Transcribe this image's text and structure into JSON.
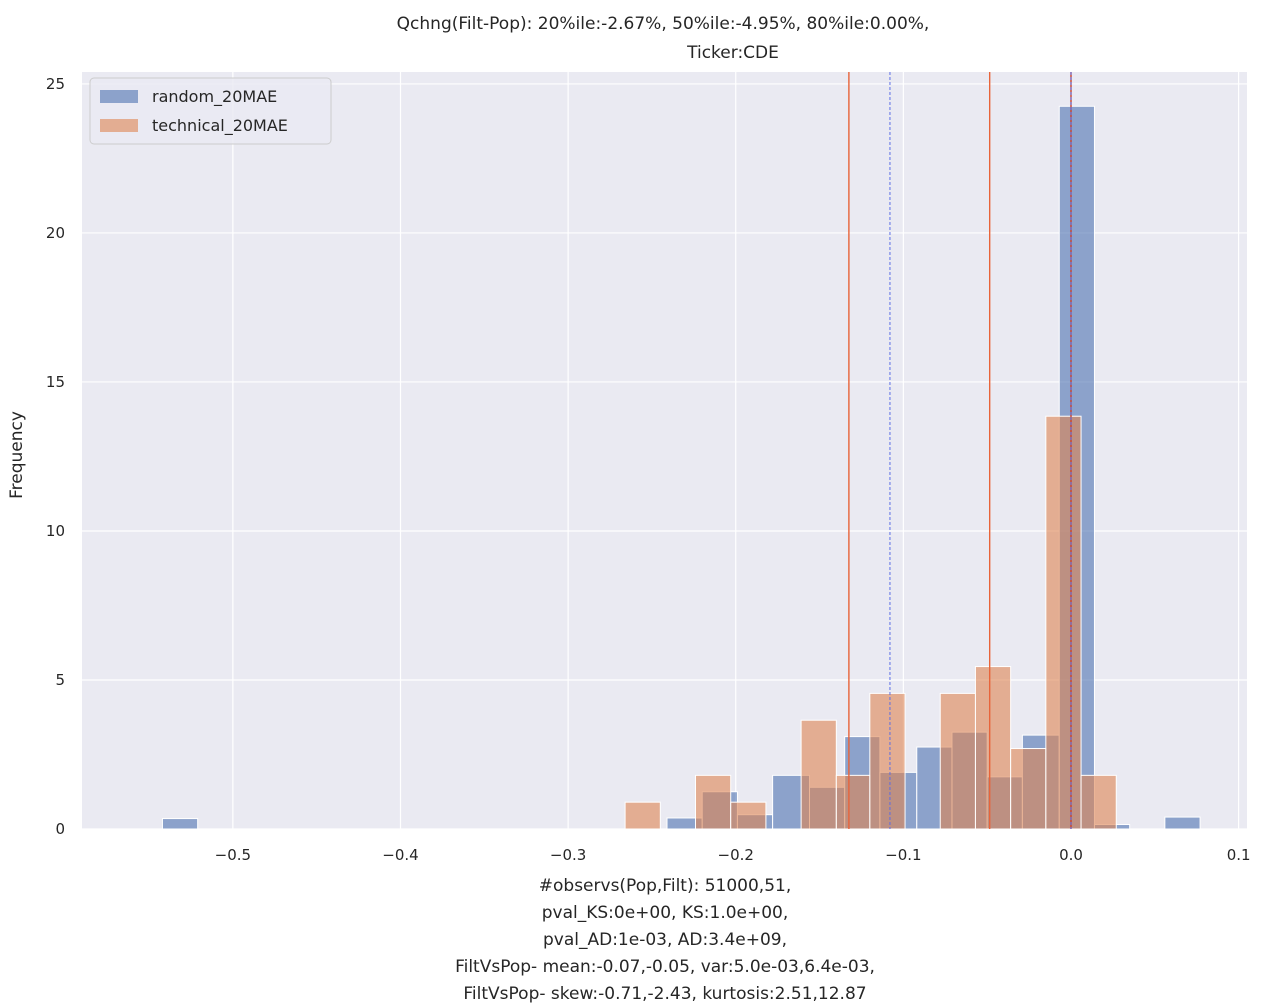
{
  "chart_data": {
    "type": "bar",
    "title_lines": [
      "Qchng(Filt-Pop):  20%ile:-2.67%, 50%ile:-4.95%, 80%ile:0.00%,",
      "Ticker:CDE"
    ],
    "ylabel": "Frequency",
    "xlabel_lines": [
      "#observs(Pop,Filt): 51000,51,",
      "pval_KS:0e+00, KS:1.0e+00,",
      "pval_AD:1e-03, AD:3.4e+09,",
      "FiltVsPop- mean:-0.07,-0.05, var:5.0e-03,6.4e-03,",
      "FiltVsPop- skew:-0.71,-2.43, kurtosis:2.51,12.87"
    ],
    "xlim": [
      -0.59,
      0.105
    ],
    "ylim": [
      0,
      25.4
    ],
    "xticks": [
      -0.5,
      -0.4,
      -0.3,
      -0.2,
      -0.1,
      0.0,
      0.1
    ],
    "xtick_labels": [
      "−0.5",
      "−0.4",
      "−0.3",
      "−0.2",
      "−0.1",
      "0.0",
      "0.1"
    ],
    "yticks": [
      0,
      5,
      10,
      15,
      20,
      25
    ],
    "ytick_labels": [
      "0",
      "5",
      "10",
      "15",
      "20",
      "25"
    ],
    "grid": true,
    "legend_position": "top-left",
    "series": [
      {
        "name": "random_20MAE",
        "color": "#4c72b0",
        "opacity": 0.6,
        "bins": [
          [
            -0.542,
            -0.521,
            0.35
          ],
          [
            -0.241,
            -0.22,
            0.37
          ],
          [
            -0.22,
            -0.199,
            1.25
          ],
          [
            -0.199,
            -0.178,
            0.48
          ],
          [
            -0.178,
            -0.156,
            1.8
          ],
          [
            -0.156,
            -0.135,
            1.4
          ],
          [
            -0.135,
            -0.114,
            3.1
          ],
          [
            -0.114,
            -0.092,
            1.9
          ],
          [
            -0.092,
            -0.071,
            2.75
          ],
          [
            -0.071,
            -0.05,
            3.25
          ],
          [
            -0.05,
            -0.029,
            1.75
          ],
          [
            -0.029,
            -0.007,
            3.15
          ],
          [
            -0.007,
            0.014,
            24.25
          ],
          [
            0.014,
            0.035,
            0.15
          ],
          [
            0.056,
            0.077,
            0.4
          ]
        ]
      },
      {
        "name": "technical_20MAE",
        "color": "#dd8452",
        "opacity": 0.6,
        "bins": [
          [
            -0.266,
            -0.245,
            0.9
          ],
          [
            -0.224,
            -0.203,
            1.8
          ],
          [
            -0.203,
            -0.182,
            0.9
          ],
          [
            -0.161,
            -0.14,
            3.65
          ],
          [
            -0.14,
            -0.12,
            1.8
          ],
          [
            -0.12,
            -0.099,
            4.55
          ],
          [
            -0.078,
            -0.057,
            4.55
          ],
          [
            -0.057,
            -0.036,
            5.45
          ],
          [
            -0.036,
            -0.015,
            2.7
          ],
          [
            -0.015,
            0.006,
            13.85
          ],
          [
            0.006,
            0.027,
            1.8
          ]
        ]
      }
    ],
    "vlines": [
      {
        "x": -0.1325,
        "color": "#e8643a",
        "dash": "solid",
        "width": 1.4
      },
      {
        "x": -0.0485,
        "color": "#e8643a",
        "dash": "solid",
        "width": 1.4
      },
      {
        "x": 0.0,
        "color": "#c8402a",
        "dash": "solid",
        "width": 1.4
      },
      {
        "x": -0.108,
        "color": "#5a6de6",
        "dash": "dashed",
        "width": 1.0
      },
      {
        "x": 0.0,
        "color": "#5a6de6",
        "dash": "dashed",
        "width": 1.0
      }
    ]
  },
  "colors": {
    "axes_bg": "#eaeaf2",
    "grid": "#ffffff"
  }
}
